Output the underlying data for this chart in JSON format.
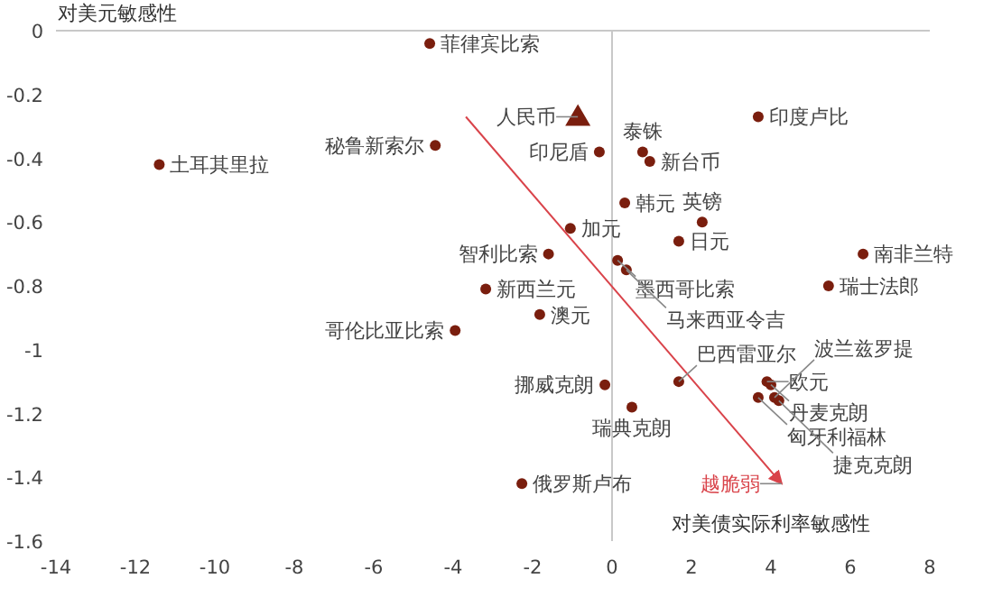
{
  "chart_data": {
    "type": "scatter",
    "ylabel": "对美元敏感性",
    "xlabel": "对美债实际利率敏感性",
    "xlim": [
      -14,
      8
    ],
    "ylim": [
      -1.6,
      0
    ],
    "xticks": [
      -14,
      -12,
      -10,
      -8,
      -6,
      -4,
      -2,
      0,
      2,
      4,
      6,
      8
    ],
    "yticks": [
      0,
      -0.2,
      -0.4,
      -0.6,
      -0.8,
      -1,
      -1.2,
      -1.4,
      -1.6
    ],
    "series": [
      {
        "color": "#7a1e0e",
        "marker": "circle",
        "x": [
          -4.59,
          -4.45,
          -11.4,
          -0.32,
          0.77,
          0.95,
          3.68,
          0.32,
          -1.05,
          -1.6,
          1.68,
          2.27,
          0.14,
          0.36,
          -3.18,
          6.32,
          5.45,
          -1.82,
          -3.95,
          -0.18,
          1.68,
          3.9,
          4.0,
          0.5,
          3.68,
          4.09,
          4.2,
          -2.27
        ],
        "values": [
          -0.04,
          -0.36,
          -0.42,
          -0.38,
          -0.38,
          -0.41,
          -0.27,
          -0.54,
          -0.62,
          -0.7,
          -0.66,
          -0.6,
          -0.72,
          -0.75,
          -0.81,
          -0.7,
          -0.8,
          -0.89,
          -0.94,
          -1.11,
          -1.1,
          -1.1,
          -1.11,
          -1.18,
          -1.15,
          -1.15,
          -1.16,
          -1.42
        ]
      },
      {
        "color": "#7a1e0e",
        "marker": "triangle",
        "x": [
          -0.86
        ],
        "values": [
          -0.27
        ]
      },
      {
        "type": "line",
        "color": "#d9434a",
        "x": [
          -3.68,
          4.27
        ],
        "values": [
          -0.27,
          -1.42
        ]
      }
    ],
    "annotations": [
      {
        "text": "菲律宾比索",
        "x": -4.59,
        "y": -0.04
      },
      {
        "text": "秘鲁新索尔",
        "x": -4.45,
        "y": -0.36
      },
      {
        "text": "土耳其里拉",
        "x": -11.4,
        "y": -0.42
      },
      {
        "text": "印尼盾",
        "x": -0.32,
        "y": -0.38
      },
      {
        "text": "泰铢",
        "x": 0.77,
        "y": -0.38
      },
      {
        "text": "新台币",
        "x": 0.95,
        "y": -0.41
      },
      {
        "text": "印度卢比",
        "x": 3.68,
        "y": -0.27
      },
      {
        "text": "韩元",
        "x": 0.32,
        "y": -0.54
      },
      {
        "text": "加元",
        "x": -1.05,
        "y": -0.62
      },
      {
        "text": "智利比索",
        "x": -1.6,
        "y": -0.7
      },
      {
        "text": "日元",
        "x": 1.68,
        "y": -0.66
      },
      {
        "text": "英镑",
        "x": 2.27,
        "y": -0.6
      },
      {
        "text": "墨西哥比索",
        "x": 0.14,
        "y": -0.72
      },
      {
        "text": "马来西亚令吉",
        "x": 0.36,
        "y": -0.75
      },
      {
        "text": "新西兰元",
        "x": -3.18,
        "y": -0.81
      },
      {
        "text": "南非兰特",
        "x": 6.32,
        "y": -0.7
      },
      {
        "text": "瑞士法郎",
        "x": 5.45,
        "y": -0.8
      },
      {
        "text": "澳元",
        "x": -1.82,
        "y": -0.89
      },
      {
        "text": "哥伦比亚比索",
        "x": -3.95,
        "y": -0.94
      },
      {
        "text": "挪威克朗",
        "x": -0.18,
        "y": -1.11
      },
      {
        "text": "巴西雷亚尔",
        "x": 1.68,
        "y": -1.1
      },
      {
        "text": "欧元",
        "x": 3.9,
        "y": -1.1
      },
      {
        "text": "丹麦克朗",
        "x": 4.0,
        "y": -1.11
      },
      {
        "text": "瑞典克朗",
        "x": 0.5,
        "y": -1.18
      },
      {
        "text": "匈牙利福林",
        "x": 3.68,
        "y": -1.15
      },
      {
        "text": "波兰兹罗提",
        "x": 4.09,
        "y": -1.15
      },
      {
        "text": "捷克克朗",
        "x": 4.2,
        "y": -1.16
      },
      {
        "text": "俄罗斯卢布",
        "x": -2.27,
        "y": -1.42
      },
      {
        "text": "人民币",
        "x": -0.86,
        "y": -0.27
      },
      {
        "text": "越脆弱",
        "x": 4.27,
        "y": -1.42
      }
    ]
  }
}
